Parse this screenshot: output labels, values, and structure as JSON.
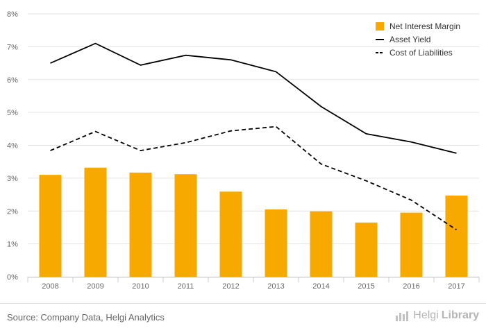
{
  "chart_data": {
    "type": "bar",
    "categories": [
      "2008",
      "2009",
      "2010",
      "2011",
      "2012",
      "2013",
      "2014",
      "2015",
      "2016",
      "2017"
    ],
    "series": [
      {
        "name": "Net Interest Margin",
        "kind": "bar",
        "style": "solid",
        "color": "#f7a900",
        "values": [
          3.1,
          3.32,
          3.17,
          3.12,
          2.59,
          2.05,
          1.99,
          1.65,
          1.95,
          2.47
        ]
      },
      {
        "name": "Asset Yield",
        "kind": "line",
        "style": "solid",
        "color": "#000000",
        "values": [
          6.5,
          7.1,
          6.44,
          6.74,
          6.6,
          6.24,
          5.18,
          4.35,
          4.1,
          3.76
        ]
      },
      {
        "name": "Cost of Liabilities",
        "kind": "line",
        "style": "dashed",
        "color": "#000000",
        "values": [
          3.84,
          4.42,
          3.84,
          4.08,
          4.44,
          4.57,
          3.43,
          2.92,
          2.33,
          1.43
        ]
      }
    ],
    "y_ticks": [
      "0%",
      "1%",
      "2%",
      "3%",
      "4%",
      "5%",
      "6%",
      "7%",
      "8%"
    ],
    "ylim": [
      0,
      8
    ],
    "grid": true,
    "legend_position": "top-right"
  },
  "footer": {
    "source": "Source: Company Data, Helgi Analytics",
    "brand_first": "Helgi",
    "brand_second": "Library"
  }
}
